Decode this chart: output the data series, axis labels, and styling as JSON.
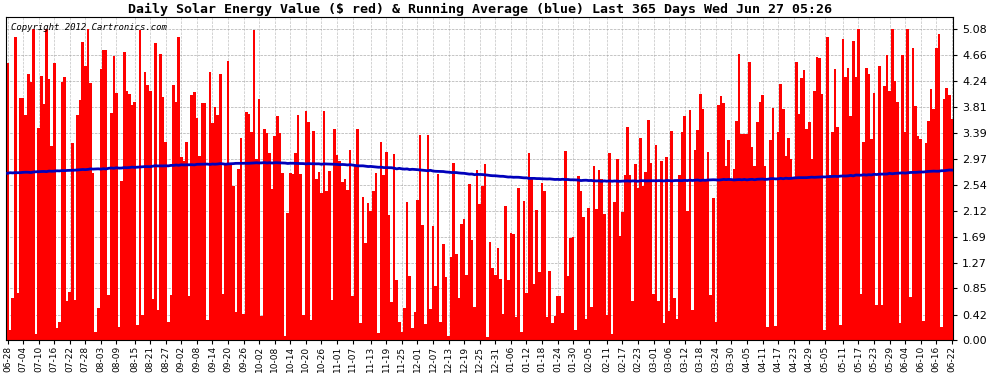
{
  "title": "Daily Solar Energy Value ($ red) & Running Average (blue) Last 365 Days Wed Jun 27 05:26",
  "copyright": "Copyright 2012 Cartronics.com",
  "bar_color": "#ff0000",
  "avg_color": "#0000bb",
  "background_color": "#ffffff",
  "grid_color": "#999999",
  "yticks": [
    0.0,
    0.42,
    0.85,
    1.27,
    1.69,
    2.12,
    2.54,
    2.97,
    3.39,
    3.81,
    4.24,
    4.66,
    5.08
  ],
  "ylim": [
    0.0,
    5.28
  ],
  "x_labels": [
    "06-28",
    "07-04",
    "07-10",
    "07-16",
    "07-22",
    "07-28",
    "08-03",
    "08-09",
    "08-15",
    "08-21",
    "08-27",
    "09-02",
    "09-08",
    "09-14",
    "09-20",
    "09-26",
    "10-02",
    "10-08",
    "10-14",
    "10-20",
    "10-26",
    "11-01",
    "11-07",
    "11-13",
    "11-19",
    "11-25",
    "12-01",
    "12-07",
    "12-13",
    "12-19",
    "12-25",
    "12-31",
    "01-06",
    "01-12",
    "01-18",
    "01-24",
    "01-30",
    "02-05",
    "02-11",
    "02-17",
    "02-23",
    "03-01",
    "03-06",
    "03-12",
    "03-18",
    "03-24",
    "03-30",
    "04-05",
    "04-11",
    "04-17",
    "04-23",
    "04-29",
    "05-05",
    "05-11",
    "05-17",
    "05-23",
    "05-29",
    "06-04",
    "06-10",
    "06-16",
    "06-22"
  ],
  "n_days": 365,
  "seed": 42
}
